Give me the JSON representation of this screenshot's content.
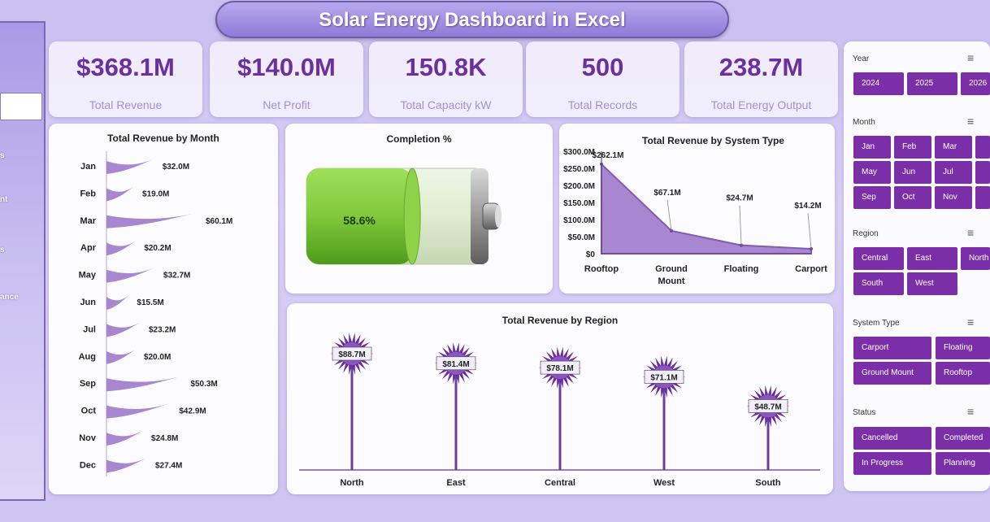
{
  "title": "Solar Energy Dashboard in Excel",
  "nav_fragments": [
    "s",
    "nt",
    "s",
    "ance"
  ],
  "kpis": [
    {
      "value": "$368.1M",
      "label": "Total Revenue"
    },
    {
      "value": "$140.0M",
      "label": "Net Profit"
    },
    {
      "value": "150.8K",
      "label": "Total Capacity kW"
    },
    {
      "value": "500",
      "label": "Total Records"
    },
    {
      "value": "238.7M",
      "label": "Total Energy Output"
    }
  ],
  "colors": {
    "accent": "#6c2f9e",
    "button": "#7a2fa8",
    "area": "#9a72c8",
    "battery": "#7fc93c"
  },
  "chart_data": [
    {
      "type": "bar",
      "title": "Total Revenue by Month",
      "categories": [
        "Jan",
        "Feb",
        "Mar",
        "Apr",
        "May",
        "Jun",
        "Jul",
        "Aug",
        "Sep",
        "Oct",
        "Nov",
        "Dec"
      ],
      "values": [
        32.0,
        19.0,
        60.1,
        20.2,
        32.7,
        15.5,
        23.2,
        20.0,
        50.3,
        42.9,
        24.8,
        27.4
      ],
      "labels": [
        "$32.0M",
        "$19.0M",
        "$60.1M",
        "$20.2M",
        "$32.7M",
        "$15.5M",
        "$23.2M",
        "$20.0M",
        "$50.3M",
        "$42.9M",
        "$24.8M",
        "$27.4M"
      ]
    },
    {
      "type": "bar",
      "title": "Completion %",
      "values": [
        58.6
      ],
      "label": "58.6%"
    },
    {
      "type": "area",
      "title": "Total Revenue by System Type",
      "categories": [
        "Rooftop",
        "Ground Mount",
        "Floating",
        "Carport"
      ],
      "values": [
        262.1,
        67.1,
        24.7,
        14.2
      ],
      "labels": [
        "$262.1M",
        "$67.1M",
        "$24.7M",
        "$14.2M"
      ],
      "yticks": [
        "$0",
        "$50.0M",
        "$100.0M",
        "$150.0M",
        "$200.0M",
        "$250.0M",
        "$300.0M"
      ],
      "ylim": [
        0,
        300
      ]
    },
    {
      "type": "bar",
      "title": "Total Revenue by Region",
      "categories": [
        "North",
        "East",
        "Central",
        "West",
        "South"
      ],
      "values": [
        88.7,
        81.4,
        78.1,
        71.1,
        48.7
      ],
      "labels": [
        "$88.7M",
        "$81.4M",
        "$78.1M",
        "$71.1M",
        "$48.7M"
      ]
    }
  ],
  "slicers": {
    "year": {
      "label": "Year",
      "items": [
        "2024",
        "2025",
        "2026"
      ]
    },
    "month": {
      "label": "Month",
      "items": [
        "Jan",
        "Feb",
        "Mar",
        "May",
        "Jun",
        "Jul",
        "Sep",
        "Oct",
        "Nov"
      ]
    },
    "region": {
      "label": "Region",
      "items": [
        "Central",
        "East",
        "North",
        "South",
        "West"
      ]
    },
    "system_type": {
      "label": "System Type",
      "items": [
        "Carport",
        "Floating",
        "Ground Mount",
        "Rooftop"
      ]
    },
    "status": {
      "label": "Status",
      "items": [
        "Cancelled",
        "Completed",
        "In Progress",
        "Planning"
      ]
    }
  }
}
